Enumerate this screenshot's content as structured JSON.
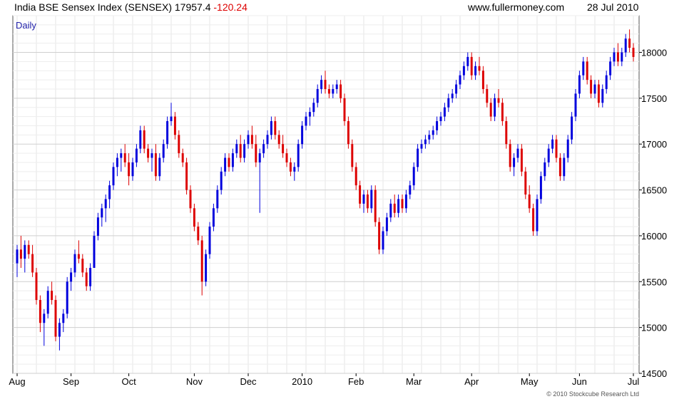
{
  "header": {
    "title_prefix": "India BSE Sensex Index (SENSEX) 17957.4 ",
    "change": "-120.24",
    "site": "www.fullermoney.com",
    "date": "28 Jul 2010"
  },
  "credit": "© 2010 Stockcube Research Ltd",
  "chart_data": {
    "type": "candlestick",
    "title": "India BSE Sensex Index (SENSEX) 17957.4 -120.24",
    "period_label": "Daily",
    "y_axis": {
      "side": "right",
      "ylim": [
        14500,
        18400
      ],
      "ticks": [
        14500,
        15000,
        15500,
        16000,
        16500,
        17000,
        17500,
        18000
      ]
    },
    "x_tick_labels": [
      "Aug",
      "Sep",
      "Oct",
      "Nov",
      "Dec",
      "2010",
      "Feb",
      "Mar",
      "Apr",
      "May",
      "Jun",
      "Jul"
    ],
    "up_color": "#0000dd",
    "down_color": "#dd0000",
    "grid": true,
    "candles": [
      [
        15700,
        15900,
        15550,
        15850
      ],
      [
        15850,
        16000,
        15650,
        15750
      ],
      [
        15750,
        15950,
        15600,
        15900
      ],
      [
        15900,
        15950,
        15750,
        15800
      ],
      [
        15800,
        15900,
        15550,
        15600
      ],
      [
        15600,
        15650,
        15250,
        15300
      ],
      [
        15300,
        15350,
        14950,
        15050
      ],
      [
        15050,
        15200,
        14800,
        15150
      ],
      [
        15150,
        15450,
        15100,
        15400
      ],
      [
        15400,
        15500,
        15250,
        15300
      ],
      [
        15300,
        15350,
        14850,
        14900
      ],
      [
        14900,
        15100,
        14750,
        15050
      ],
      [
        15050,
        15200,
        14950,
        15150
      ],
      [
        15150,
        15550,
        15100,
        15500
      ],
      [
        15500,
        15650,
        15400,
        15600
      ],
      [
        15600,
        15850,
        15550,
        15800
      ],
      [
        15800,
        15950,
        15700,
        15750
      ],
      [
        15750,
        15800,
        15550,
        15600
      ],
      [
        15600,
        15650,
        15400,
        15450
      ],
      [
        15450,
        15700,
        15400,
        15650
      ],
      [
        15650,
        16050,
        15650,
        16000
      ],
      [
        16000,
        16250,
        15950,
        16200
      ],
      [
        16200,
        16350,
        16100,
        16300
      ],
      [
        16300,
        16450,
        16150,
        16400
      ],
      [
        16400,
        16600,
        16300,
        16550
      ],
      [
        16550,
        16800,
        16500,
        16750
      ],
      [
        16750,
        16900,
        16650,
        16850
      ],
      [
        16850,
        16950,
        16700,
        16900
      ],
      [
        16900,
        17000,
        16750,
        16800
      ],
      [
        16800,
        16900,
        16550,
        16650
      ],
      [
        16650,
        16850,
        16600,
        16800
      ],
      [
        16800,
        17000,
        16750,
        16950
      ],
      [
        16950,
        17200,
        16900,
        17150
      ],
      [
        17150,
        17200,
        16900,
        16950
      ],
      [
        16950,
        17000,
        16800,
        16850
      ],
      [
        16850,
        16950,
        16700,
        16900
      ],
      [
        16900,
        17000,
        16600,
        16650
      ],
      [
        16650,
        16900,
        16600,
        16850
      ],
      [
        16850,
        17050,
        16800,
        17000
      ],
      [
        17000,
        17300,
        16950,
        17250
      ],
      [
        17250,
        17450,
        17200,
        17300
      ],
      [
        17300,
        17350,
        17050,
        17100
      ],
      [
        17100,
        17150,
        16850,
        16900
      ],
      [
        16900,
        16950,
        16750,
        16800
      ],
      [
        16800,
        16850,
        16450,
        16500
      ],
      [
        16500,
        16550,
        16250,
        16300
      ],
      [
        16300,
        16350,
        16050,
        16100
      ],
      [
        16100,
        16150,
        15900,
        15950
      ],
      [
        15950,
        16000,
        15350,
        15500
      ],
      [
        15500,
        15850,
        15450,
        15800
      ],
      [
        15800,
        16150,
        15750,
        16100
      ],
      [
        16100,
        16350,
        16050,
        16300
      ],
      [
        16300,
        16550,
        16250,
        16500
      ],
      [
        16500,
        16750,
        16450,
        16700
      ],
      [
        16700,
        16900,
        16650,
        16850
      ],
      [
        16850,
        16900,
        16700,
        16750
      ],
      [
        16750,
        16950,
        16700,
        16900
      ],
      [
        16900,
        17050,
        16850,
        17000
      ],
      [
        17000,
        17100,
        16800,
        16850
      ],
      [
        16850,
        17050,
        16800,
        17000
      ],
      [
        17000,
        17150,
        16950,
        17100
      ],
      [
        17100,
        17200,
        16950,
        17000
      ],
      [
        17000,
        17100,
        16750,
        16800
      ],
      [
        16800,
        16950,
        16250,
        16900
      ],
      [
        16900,
        17050,
        16850,
        17000
      ],
      [
        17000,
        17150,
        16950,
        17100
      ],
      [
        17100,
        17300,
        17050,
        17250
      ],
      [
        17250,
        17300,
        17050,
        17100
      ],
      [
        17100,
        17150,
        16950,
        17000
      ],
      [
        17000,
        17100,
        16850,
        16900
      ],
      [
        16900,
        16950,
        16750,
        16800
      ],
      [
        16800,
        16850,
        16650,
        16700
      ],
      [
        16700,
        16800,
        16600,
        16750
      ],
      [
        16750,
        17050,
        16700,
        17000
      ],
      [
        17000,
        17250,
        16950,
        17200
      ],
      [
        17200,
        17350,
        17150,
        17300
      ],
      [
        17300,
        17400,
        17200,
        17350
      ],
      [
        17350,
        17500,
        17300,
        17450
      ],
      [
        17450,
        17650,
        17400,
        17600
      ],
      [
        17600,
        17750,
        17550,
        17700
      ],
      [
        17700,
        17800,
        17550,
        17600
      ],
      [
        17600,
        17650,
        17500,
        17550
      ],
      [
        17550,
        17650,
        17500,
        17600
      ],
      [
        17600,
        17700,
        17550,
        17650
      ],
      [
        17650,
        17700,
        17450,
        17500
      ],
      [
        17500,
        17550,
        17200,
        17250
      ],
      [
        17250,
        17300,
        16950,
        17000
      ],
      [
        17000,
        17050,
        16700,
        16750
      ],
      [
        16750,
        16800,
        16500,
        16550
      ],
      [
        16550,
        16600,
        16300,
        16350
      ],
      [
        16350,
        16500,
        16250,
        16450
      ],
      [
        16450,
        16500,
        16250,
        16300
      ],
      [
        16300,
        16550,
        16250,
        16500
      ],
      [
        16500,
        16550,
        16100,
        16150
      ],
      [
        16150,
        16200,
        15800,
        15850
      ],
      [
        15850,
        16100,
        15800,
        16050
      ],
      [
        16050,
        16250,
        16000,
        16200
      ],
      [
        16200,
        16400,
        16150,
        16350
      ],
      [
        16350,
        16450,
        16200,
        16250
      ],
      [
        16250,
        16450,
        16200,
        16400
      ],
      [
        16400,
        16450,
        16250,
        16300
      ],
      [
        16300,
        16500,
        16250,
        16450
      ],
      [
        16450,
        16600,
        16400,
        16550
      ],
      [
        16550,
        16800,
        16500,
        16750
      ],
      [
        16750,
        17000,
        16700,
        16950
      ],
      [
        16950,
        17050,
        16900,
        17000
      ],
      [
        17000,
        17100,
        16950,
        17050
      ],
      [
        17050,
        17150,
        17000,
        17100
      ],
      [
        17100,
        17200,
        17050,
        17150
      ],
      [
        17150,
        17300,
        17100,
        17250
      ],
      [
        17250,
        17350,
        17200,
        17300
      ],
      [
        17300,
        17450,
        17250,
        17400
      ],
      [
        17400,
        17550,
        17350,
        17500
      ],
      [
        17500,
        17600,
        17450,
        17550
      ],
      [
        17550,
        17700,
        17500,
        17650
      ],
      [
        17650,
        17800,
        17600,
        17750
      ],
      [
        17750,
        17900,
        17700,
        17850
      ],
      [
        17850,
        18000,
        17800,
        17950
      ],
      [
        17950,
        18000,
        17700,
        17750
      ],
      [
        17750,
        17900,
        17700,
        17850
      ],
      [
        17850,
        17950,
        17750,
        17800
      ],
      [
        17800,
        17850,
        17550,
        17600
      ],
      [
        17600,
        17650,
        17400,
        17450
      ],
      [
        17450,
        17500,
        17250,
        17300
      ],
      [
        17300,
        17550,
        17250,
        17500
      ],
      [
        17500,
        17600,
        17400,
        17450
      ],
      [
        17450,
        17500,
        17200,
        17250
      ],
      [
        17250,
        17300,
        16950,
        17000
      ],
      [
        17000,
        17050,
        16700,
        16750
      ],
      [
        16750,
        16900,
        16650,
        16850
      ],
      [
        16850,
        17000,
        16800,
        16950
      ],
      [
        16950,
        17000,
        16650,
        16700
      ],
      [
        16700,
        16750,
        16400,
        16450
      ],
      [
        16450,
        16550,
        16250,
        16300
      ],
      [
        16300,
        16350,
        16000,
        16050
      ],
      [
        16050,
        16450,
        16000,
        16400
      ],
      [
        16400,
        16700,
        16350,
        16650
      ],
      [
        16650,
        16850,
        16600,
        16800
      ],
      [
        16800,
        17000,
        16750,
        16950
      ],
      [
        16950,
        17100,
        16900,
        17050
      ],
      [
        17050,
        17100,
        16800,
        16850
      ],
      [
        16850,
        16900,
        16600,
        16650
      ],
      [
        16650,
        16900,
        16600,
        16850
      ],
      [
        16850,
        17100,
        16800,
        17050
      ],
      [
        17050,
        17350,
        17000,
        17300
      ],
      [
        17300,
        17600,
        17250,
        17550
      ],
      [
        17550,
        17800,
        17500,
        17750
      ],
      [
        17750,
        17950,
        17700,
        17900
      ],
      [
        17900,
        17950,
        17650,
        17700
      ],
      [
        17700,
        17750,
        17500,
        17550
      ],
      [
        17550,
        17700,
        17500,
        17650
      ],
      [
        17650,
        17700,
        17400,
        17450
      ],
      [
        17450,
        17650,
        17400,
        17600
      ],
      [
        17600,
        17800,
        17550,
        17750
      ],
      [
        17750,
        17950,
        17700,
        17900
      ],
      [
        17900,
        18050,
        17850,
        18000
      ],
      [
        18000,
        18100,
        17850,
        17900
      ],
      [
        17900,
        18050,
        17850,
        18000
      ],
      [
        18000,
        18200,
        17950,
        18150
      ],
      [
        18150,
        18250,
        18000,
        18050
      ],
      [
        18050,
        18100,
        17900,
        17950
      ]
    ]
  }
}
